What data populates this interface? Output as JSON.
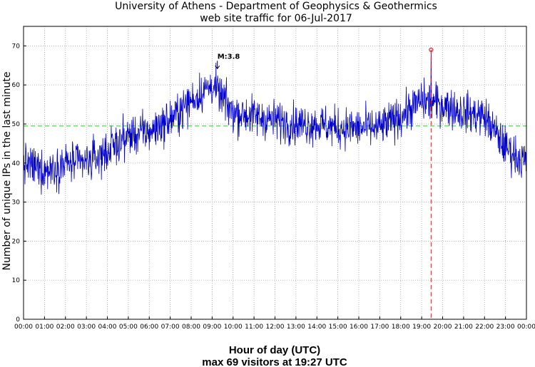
{
  "chart_data": {
    "type": "line",
    "title": "University of Athens - Department of Geophysics & Geothermics",
    "subtitle": "web site traffic for 06-Jul-2017",
    "xlabel": "Hour of day (UTC)",
    "footer": "max 69 visitors at 19:27 UTC",
    "ylabel": "Number of unique IPs in the last minute",
    "xlim": [
      0,
      24
    ],
    "ylim": [
      0,
      75
    ],
    "yticks": [
      0,
      10,
      20,
      30,
      40,
      50,
      60,
      70
    ],
    "xticks": [
      "00:00",
      "01:00",
      "02:00",
      "03:00",
      "04:00",
      "05:00",
      "06:00",
      "07:00",
      "08:00",
      "09:00",
      "10:00",
      "11:00",
      "12:00",
      "13:00",
      "14:00",
      "15:00",
      "16:00",
      "17:00",
      "18:00",
      "19:00",
      "20:00",
      "21:00",
      "22:00",
      "23:00",
      "00:00"
    ],
    "grid": true,
    "mean_line": {
      "value": 49.5,
      "color": "#44dd44"
    },
    "max_marker": {
      "hour": 19.45,
      "value": 69,
      "color": "#dd2222"
    },
    "annotation": {
      "text": "M:3.8",
      "hour": 9.25,
      "value": 64
    },
    "series": [
      {
        "name": "unique IPs",
        "color": "#0000cc",
        "hourly_profile": {
          "hours": [
            0,
            1,
            2,
            3,
            4,
            5,
            6,
            7,
            8,
            9,
            10,
            11,
            12,
            13,
            14,
            15,
            16,
            17,
            18,
            19,
            20,
            21,
            22,
            23,
            24
          ],
          "values": [
            40,
            38,
            40,
            40,
            43,
            47,
            48,
            51,
            56,
            60,
            53,
            52,
            51,
            50,
            50,
            49,
            49,
            49,
            52,
            56,
            55,
            53,
            52,
            44,
            40
          ]
        }
      }
    ]
  }
}
